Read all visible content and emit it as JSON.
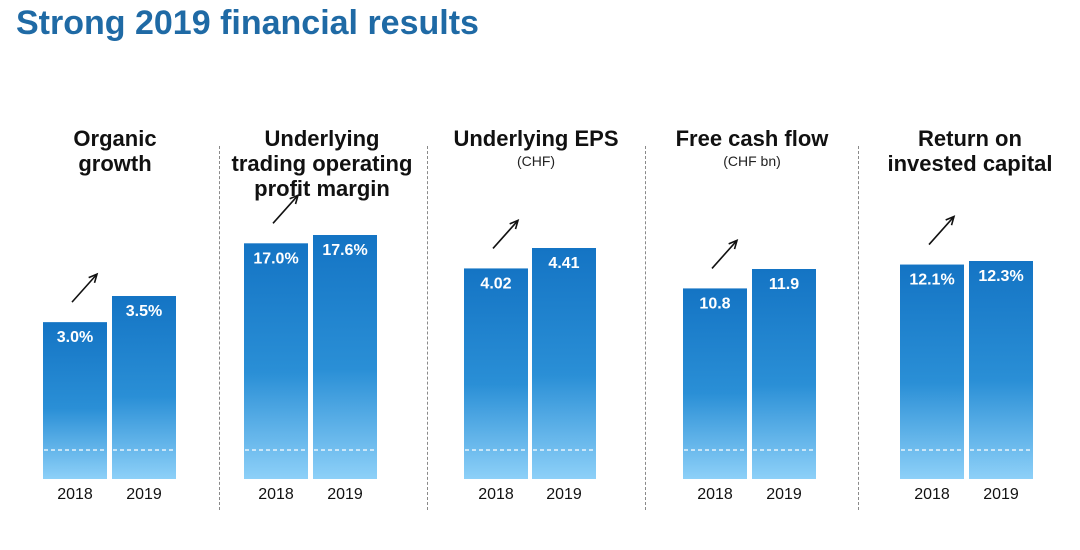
{
  "page": {
    "title": "Strong 2019 financial results"
  },
  "colors": {
    "title": "#1f6aa5",
    "bar_top": "#1474c4",
    "bar_bottom": "#8dd0f8",
    "threshold_line": "#ffffff",
    "divider": "#8a8a8a"
  },
  "chart_data": [
    {
      "type": "bar",
      "title_lines": [
        "Organic",
        "growth"
      ],
      "subtitle": "",
      "categories": [
        "2018",
        "2019"
      ],
      "values": [
        3.0,
        3.5
      ],
      "labels": [
        "3.0%",
        "3.5%"
      ],
      "unit": "%"
    },
    {
      "type": "bar",
      "title_lines": [
        "Underlying",
        "trading operating",
        "profit margin"
      ],
      "subtitle": "",
      "categories": [
        "2018",
        "2019"
      ],
      "values": [
        17.0,
        17.6
      ],
      "labels": [
        "17.0%",
        "17.6%"
      ],
      "unit": "%"
    },
    {
      "type": "bar",
      "title_lines": [
        "Underlying EPS"
      ],
      "subtitle": "(CHF)",
      "categories": [
        "2018",
        "2019"
      ],
      "values": [
        4.02,
        4.41
      ],
      "labels": [
        "4.02",
        "4.41"
      ],
      "unit": "CHF"
    },
    {
      "type": "bar",
      "title_lines": [
        "Free cash flow"
      ],
      "subtitle": "(CHF bn)",
      "categories": [
        "2018",
        "2019"
      ],
      "values": [
        10.8,
        11.9
      ],
      "labels": [
        "10.8",
        "11.9"
      ],
      "unit": "CHF bn"
    },
    {
      "type": "bar",
      "title_lines": [
        "Return on",
        "invested capital"
      ],
      "subtitle": "",
      "categories": [
        "2018",
        "2019"
      ],
      "values": [
        12.1,
        12.3
      ],
      "labels": [
        "12.1%",
        "12.3%"
      ],
      "unit": "%"
    }
  ]
}
